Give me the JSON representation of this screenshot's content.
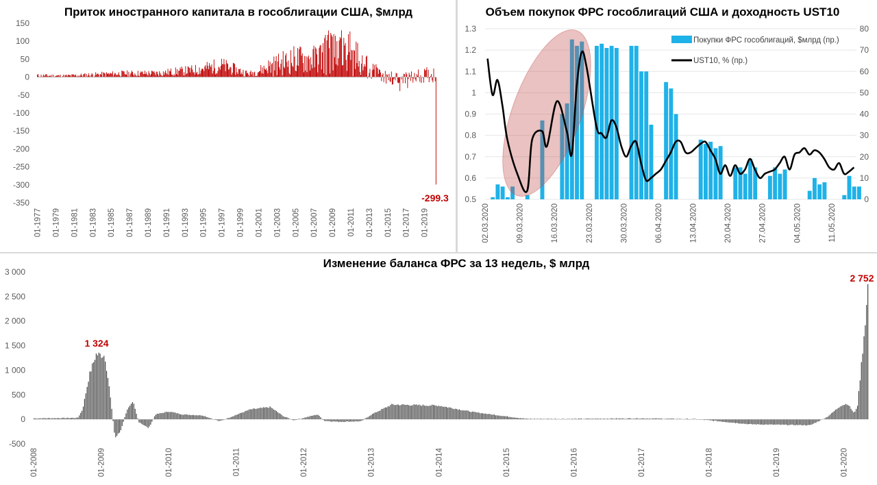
{
  "chart_data": [
    {
      "id": "inflows",
      "type": "bar",
      "title": "Приток иностранного капитала в гособлигации США, $млрд",
      "color": "#c00000",
      "ylim": [
        -350,
        150
      ],
      "y_ticks": [
        150,
        100,
        50,
        0,
        -50,
        -100,
        -150,
        -200,
        -250,
        -300,
        -350
      ],
      "x_ticks": [
        "01-1977",
        "01-1979",
        "01-1981",
        "01-1983",
        "01-1985",
        "01-1987",
        "01-1989",
        "01-1991",
        "01-1993",
        "01-1995",
        "01-1997",
        "01-1999",
        "01-2001",
        "01-2003",
        "01-2005",
        "01-2007",
        "01-2009",
        "01-2011",
        "01-2013",
        "01-2015",
        "01-2017",
        "01-2019"
      ],
      "x_start": "01-1977",
      "months": 520,
      "envelope": [
        {
          "year": 1977,
          "value": 4
        },
        {
          "year": 1980,
          "value": 3
        },
        {
          "year": 1983,
          "value": 6
        },
        {
          "year": 1986,
          "value": 9
        },
        {
          "year": 1990,
          "value": 10
        },
        {
          "year": 1994,
          "value": 18
        },
        {
          "year": 1997,
          "value": 30
        },
        {
          "year": 2000,
          "value": 8
        },
        {
          "year": 2002,
          "value": 25
        },
        {
          "year": 2005,
          "value": 45
        },
        {
          "year": 2007,
          "value": 45
        },
        {
          "year": 2009,
          "value": 70
        },
        {
          "year": 2011,
          "value": 60
        },
        {
          "year": 2012,
          "value": 35
        },
        {
          "year": 2014,
          "value": 5
        },
        {
          "year": 2016,
          "value": -10
        },
        {
          "year": 2018,
          "value": 0
        },
        {
          "year": 2019.9,
          "value": 5
        }
      ],
      "last_value": -299.3,
      "annotation": "-299.3"
    },
    {
      "id": "fed_purchases",
      "type": "bar+line",
      "title": "Объем покупок ФРС гособлигаций США и доходность UST10",
      "bar_color": "#1fb2e8",
      "line_color": "#000000",
      "ellipse_color": "#d9999b",
      "left_ylim": [
        0.5,
        1.3
      ],
      "left_ticks": [
        "1.3",
        "1.2",
        "1.1",
        "1",
        "0.9",
        "0.8",
        "0.7",
        "0.6",
        "0.5"
      ],
      "right_ylim": [
        0,
        80
      ],
      "right_ticks": [
        "80",
        "70",
        "60",
        "50",
        "40",
        "30",
        "20",
        "10",
        "0"
      ],
      "x_ticks": [
        "02.03.2020",
        "09.03.2020",
        "16.03.2020",
        "23.03.2020",
        "30.03.2020",
        "06.04.2020",
        "13.04.2020",
        "20.04.2020",
        "27.04.2020",
        "04.05.2020",
        "11.05.2020"
      ],
      "series": [
        {
          "name": "Покупки ФРС гособлигаций, $млрд (пр.)",
          "axis": "right",
          "days": [
            1,
            2,
            3,
            4,
            5,
            8,
            11,
            12,
            15,
            16,
            17,
            18,
            19,
            22,
            23,
            24,
            25,
            26,
            29,
            30,
            31,
            32,
            33,
            36,
            37,
            38,
            39,
            40,
            43,
            44,
            45,
            46,
            47,
            50,
            51,
            52,
            53,
            54,
            57,
            58,
            59,
            60,
            61,
            64,
            65,
            66,
            67,
            68,
            71,
            72,
            73,
            74,
            75
          ],
          "values": [
            1,
            7,
            6,
            1,
            6,
            2,
            37,
            0,
            40,
            45,
            75,
            72,
            74,
            72,
            73,
            71,
            72,
            71,
            72,
            72,
            60,
            60,
            35,
            55,
            52,
            40,
            0,
            0,
            28,
            26,
            27,
            24,
            25,
            15,
            15,
            12,
            19,
            15,
            11,
            15,
            12,
            14,
            0,
            0,
            4,
            10,
            7,
            8,
            0,
            2,
            11,
            6,
            6
          ]
        },
        {
          "name": "UST10, % (пр.)",
          "axis": "left",
          "days": [
            0,
            1,
            2,
            3,
            4,
            6,
            8,
            9,
            11,
            12,
            14,
            16,
            17,
            18,
            19,
            20,
            22,
            23,
            24,
            25,
            26,
            27,
            28,
            29,
            30,
            31,
            32,
            33,
            34,
            35,
            36,
            37,
            38,
            39,
            40,
            41,
            42,
            43,
            44,
            45,
            46,
            47,
            48,
            49,
            50,
            51,
            52,
            53,
            54,
            55,
            56,
            57,
            58,
            59,
            60,
            61,
            62,
            63,
            64,
            65,
            66,
            67,
            68,
            69,
            70,
            71,
            72,
            73,
            74
          ],
          "values": [
            1.16,
            0.99,
            1.06,
            0.94,
            0.78,
            0.62,
            0.54,
            0.78,
            0.82,
            0.75,
            0.96,
            0.82,
            0.71,
            1.03,
            1.19,
            1.12,
            0.84,
            0.81,
            0.79,
            0.87,
            0.84,
            0.75,
            0.7,
            0.75,
            0.77,
            0.67,
            0.59,
            0.6,
            0.62,
            0.64,
            0.68,
            0.72,
            0.77,
            0.77,
            0.72,
            0.72,
            0.74,
            0.76,
            0.77,
            0.73,
            0.69,
            0.62,
            0.66,
            0.61,
            0.66,
            0.62,
            0.64,
            0.69,
            0.64,
            0.6,
            0.62,
            0.63,
            0.64,
            0.67,
            0.7,
            0.64,
            0.71,
            0.72,
            0.74,
            0.71,
            0.73,
            0.72,
            0.69,
            0.65,
            0.64,
            0.67,
            0.62,
            0.63,
            0.65
          ]
        }
      ]
    },
    {
      "id": "fed_balance",
      "type": "bar",
      "title": "Изменение баланса ФРС за 13 недель, $ млрд",
      "color": "#3a3a3a",
      "ylim": [
        -500,
        3000
      ],
      "y_ticks": [
        "3 000",
        "2 500",
        "2 000",
        "1 500",
        "1 000",
        "500",
        "0",
        "-500"
      ],
      "x_ticks": [
        "01-2008",
        "01-2009",
        "01-2010",
        "01-2011",
        "01-2012",
        "01-2013",
        "01-2014",
        "01-2015",
        "01-2016",
        "01-2017",
        "01-2018",
        "01-2019",
        "01-2020"
      ],
      "weeks": 644,
      "envelope": [
        {
          "year": 2008.0,
          "value": 20
        },
        {
          "year": 2008.65,
          "value": 30
        },
        {
          "year": 2008.72,
          "value": 200
        },
        {
          "year": 2008.82,
          "value": 900
        },
        {
          "year": 2008.92,
          "value": 1324
        },
        {
          "year": 2009.05,
          "value": 1300
        },
        {
          "year": 2009.12,
          "value": 600
        },
        {
          "year": 2009.2,
          "value": -380
        },
        {
          "year": 2009.28,
          "value": -250
        },
        {
          "year": 2009.38,
          "value": 200
        },
        {
          "year": 2009.47,
          "value": 350
        },
        {
          "year": 2009.55,
          "value": -50
        },
        {
          "year": 2009.7,
          "value": -180
        },
        {
          "year": 2009.8,
          "value": 100
        },
        {
          "year": 2010.0,
          "value": 160
        },
        {
          "year": 2010.2,
          "value": 100
        },
        {
          "year": 2010.5,
          "value": 80
        },
        {
          "year": 2010.75,
          "value": -40
        },
        {
          "year": 2010.9,
          "value": 40
        },
        {
          "year": 2011.2,
          "value": 200
        },
        {
          "year": 2011.5,
          "value": 250
        },
        {
          "year": 2011.7,
          "value": 60
        },
        {
          "year": 2011.85,
          "value": -20
        },
        {
          "year": 2012.2,
          "value": 100
        },
        {
          "year": 2012.3,
          "value": -30
        },
        {
          "year": 2012.5,
          "value": -50
        },
        {
          "year": 2012.85,
          "value": -40
        },
        {
          "year": 2013.0,
          "value": 100
        },
        {
          "year": 2013.3,
          "value": 300
        },
        {
          "year": 2014.0,
          "value": 280
        },
        {
          "year": 2014.5,
          "value": 150
        },
        {
          "year": 2015.0,
          "value": 60
        },
        {
          "year": 2015.3,
          "value": 10
        },
        {
          "year": 2016.0,
          "value": 10
        },
        {
          "year": 2017.0,
          "value": 20
        },
        {
          "year": 2017.8,
          "value": 5
        },
        {
          "year": 2018.3,
          "value": -60
        },
        {
          "year": 2018.6,
          "value": -100
        },
        {
          "year": 2019.0,
          "value": -110
        },
        {
          "year": 2019.5,
          "value": -120
        },
        {
          "year": 2019.75,
          "value": 50
        },
        {
          "year": 2019.95,
          "value": 280
        },
        {
          "year": 2020.05,
          "value": 320
        },
        {
          "year": 2020.15,
          "value": 120
        },
        {
          "year": 2020.2,
          "value": 300
        },
        {
          "year": 2020.28,
          "value": 1500
        },
        {
          "year": 2020.36,
          "value": 2752
        }
      ],
      "peak_2008": 1324,
      "peak_2020": 2752,
      "annotations": [
        "1 324",
        "2 752"
      ]
    }
  ]
}
